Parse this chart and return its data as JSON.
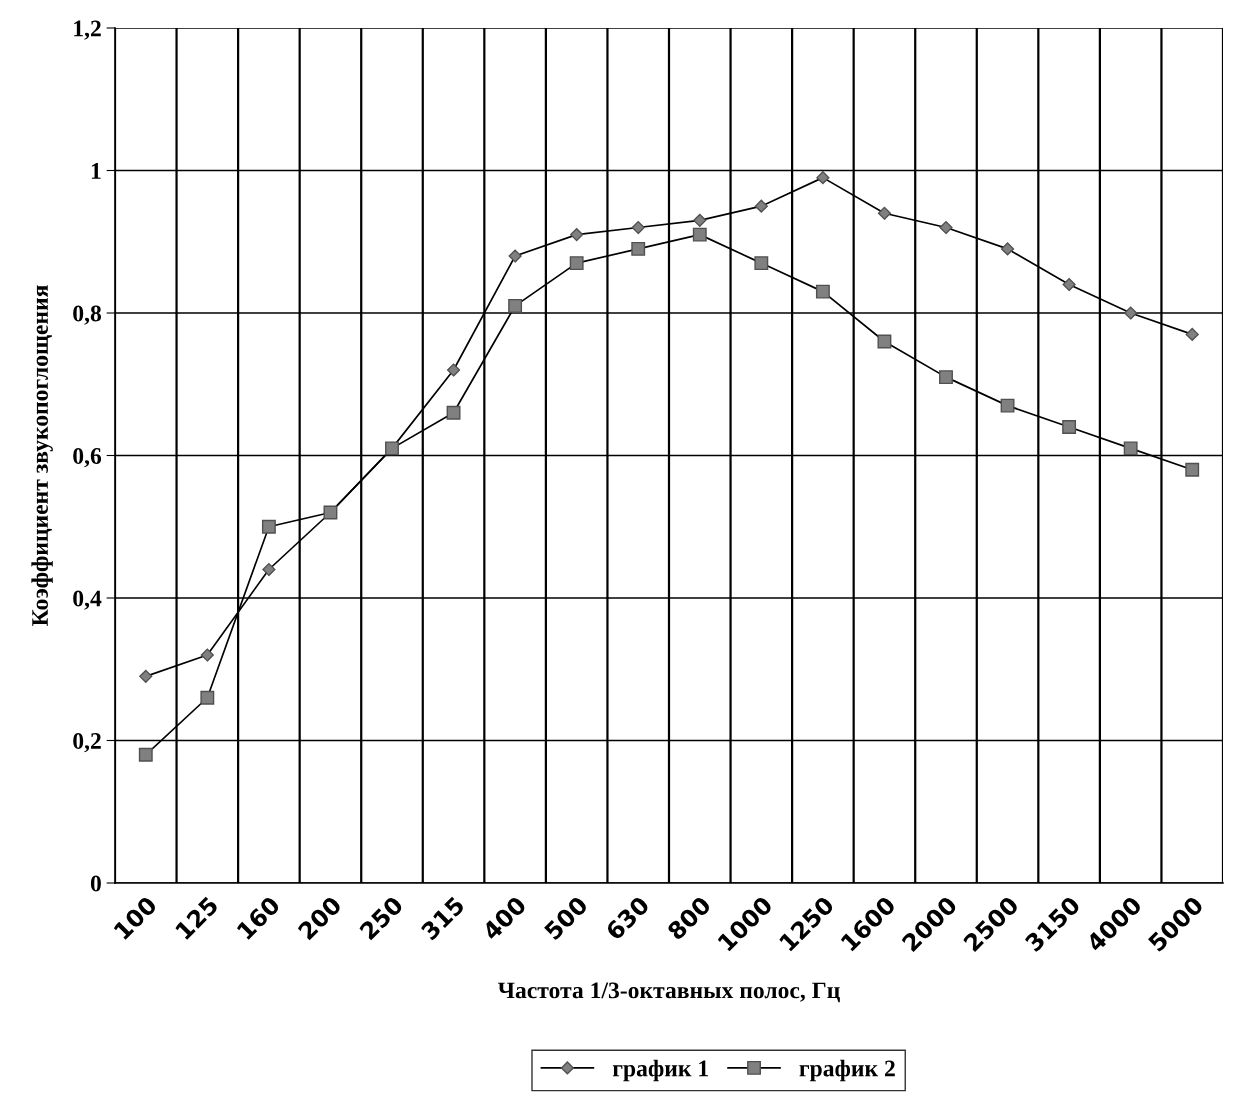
{
  "chart_data": {
    "type": "line",
    "xlabel": "Частота 1/3-октавных полос, Гц",
    "ylabel": "Коэффициент звукопоглощения",
    "categories": [
      "100",
      "125",
      "160",
      "200",
      "250",
      "315",
      "400",
      "500",
      "630",
      "800",
      "1000",
      "1250",
      "1600",
      "2000",
      "2500",
      "3150",
      "4000",
      "5000"
    ],
    "series": [
      {
        "name": "график 1",
        "color": "#808080",
        "marker": "diamond",
        "values": [
          0.29,
          0.32,
          0.44,
          0.52,
          0.61,
          0.72,
          0.88,
          0.91,
          0.92,
          0.93,
          0.95,
          0.99,
          0.94,
          0.92,
          0.89,
          0.84,
          0.8,
          0.77
        ]
      },
      {
        "name": "график 2",
        "color": "#808080",
        "marker": "square",
        "values": [
          0.18,
          0.26,
          0.5,
          0.52,
          0.61,
          0.66,
          0.81,
          0.87,
          0.89,
          0.91,
          0.87,
          0.83,
          0.76,
          0.71,
          0.67,
          0.64,
          0.61,
          0.58
        ]
      }
    ],
    "ylim": [
      0,
      1.2
    ],
    "yticks": [
      0,
      {
        "value": 0.2,
        "label": "0,2"
      },
      {
        "value": 0.4,
        "label": "0,4"
      },
      {
        "value": 0.6,
        "label": "0,6"
      },
      {
        "value": 0.8,
        "label": "0,8"
      },
      1,
      {
        "value": 1.2,
        "label": "1,2"
      }
    ],
    "grid": true,
    "legend": "bottom",
    "line_style": "solid"
  }
}
